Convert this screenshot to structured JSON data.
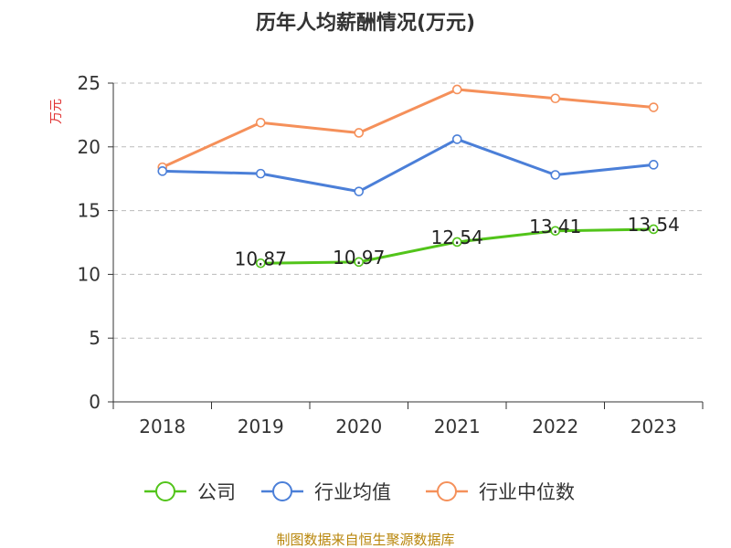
{
  "chart_data": {
    "type": "line",
    "title": "历年人均薪酬情况(万元)",
    "ylabel": "万元",
    "xlabel": "",
    "categories": [
      "2018",
      "2019",
      "2020",
      "2021",
      "2022",
      "2023"
    ],
    "ylim": [
      0,
      25
    ],
    "yticks": [
      0,
      5,
      10,
      15,
      20,
      25
    ],
    "grid": true,
    "legend_position": "bottom",
    "series": [
      {
        "name": "公司",
        "color": "#52c41a",
        "values": [
          null,
          10.87,
          10.97,
          12.54,
          13.41,
          13.54
        ],
        "labels": [
          null,
          "10.87",
          "10.97",
          "12.54",
          "13.41",
          "13.54"
        ]
      },
      {
        "name": "行业均值",
        "color": "#4b7fd8",
        "values": [
          18.1,
          17.9,
          16.5,
          20.6,
          17.8,
          18.6
        ]
      },
      {
        "name": "行业中位数",
        "color": "#f5905a",
        "values": [
          18.4,
          21.9,
          21.1,
          24.5,
          23.8,
          23.1
        ]
      }
    ]
  },
  "source": {
    "text": "制图数据来自恒生聚源数据库",
    "color": "#b8860b"
  },
  "unit_color": "#e03131"
}
